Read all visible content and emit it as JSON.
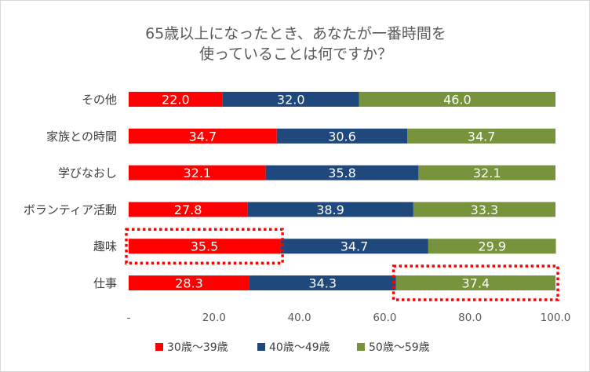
{
  "chart_data": {
    "type": "bar",
    "orientation": "horizontal",
    "stacked": "percent",
    "title": [
      "65歳以上になったとき、あなたが一番時間を",
      "使っていることは何ですか？"
    ],
    "categories": [
      "その他",
      "家族との時間",
      "学びなおし",
      "ボランティア活動",
      "趣味",
      "仕事"
    ],
    "series": [
      {
        "name": "30歳～39歳",
        "color": "#ff0000",
        "values": [
          22.0,
          34.7,
          32.1,
          27.8,
          35.5,
          28.3
        ]
      },
      {
        "name": "40歳～49歳",
        "color": "#1f497d",
        "values": [
          32.0,
          30.6,
          35.8,
          38.9,
          34.7,
          34.3
        ]
      },
      {
        "name": "50歳～59歳",
        "color": "#77933c",
        "values": [
          46.0,
          34.7,
          32.1,
          33.3,
          29.9,
          37.4
        ]
      }
    ],
    "xlim": [
      0,
      100
    ],
    "x_ticks": [
      "-",
      "20.0",
      "40.0",
      "60.0",
      "80.0",
      "100.0"
    ],
    "x_tick_values": [
      0,
      20,
      40,
      60,
      80,
      100
    ],
    "grid": false,
    "legend": "bottom",
    "highlights": [
      {
        "category": "趣味",
        "series": "30歳～39歳",
        "style": "dotted",
        "color": "#ff0000"
      },
      {
        "category": "仕事",
        "series": "50歳～59歳",
        "style": "dotted",
        "color": "#ff0000"
      }
    ]
  }
}
